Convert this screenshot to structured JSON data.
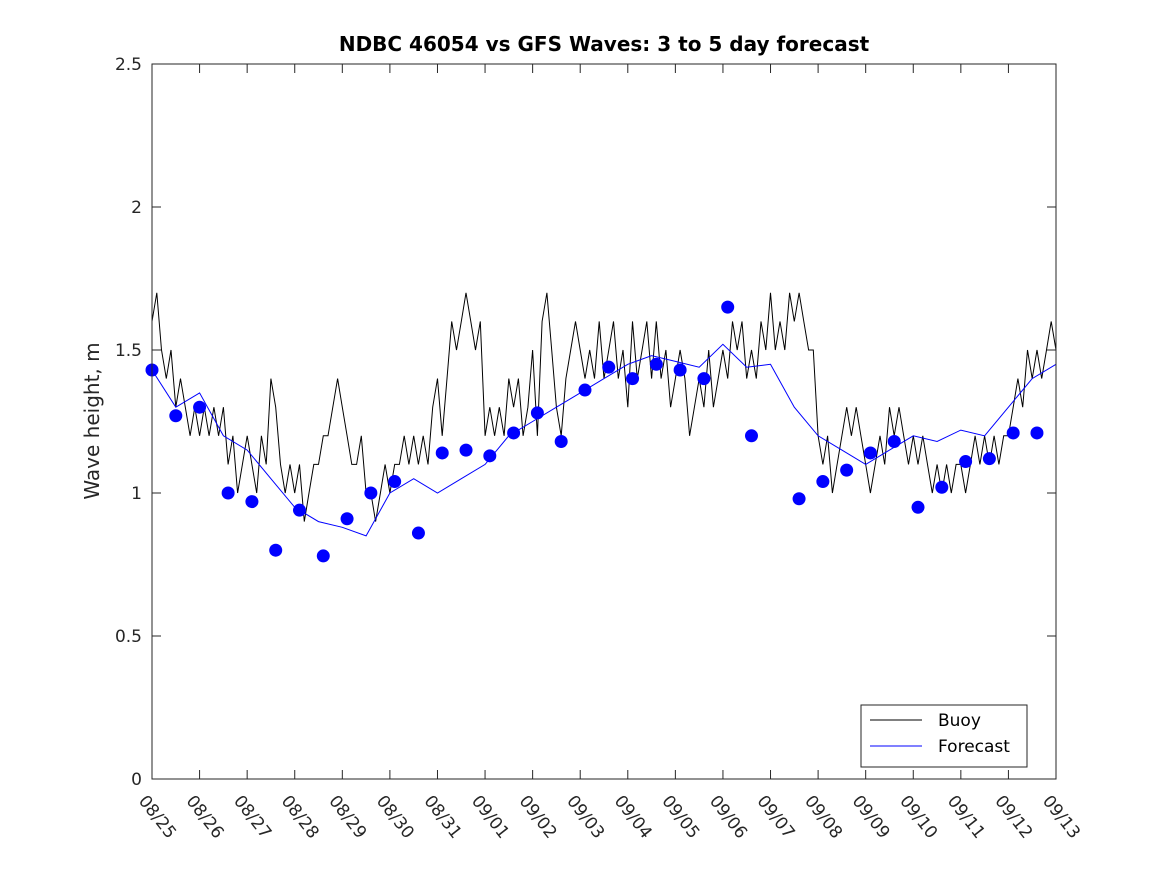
{
  "chart_data": {
    "type": "line",
    "title": "NDBC 46054 vs GFS Waves: 3 to 5 day forecast",
    "xlabel": "",
    "ylabel": "Wave height, m",
    "xlim": [
      0,
      19
    ],
    "ylim": [
      0,
      2.5
    ],
    "x_ticks": [
      "08/25",
      "08/26",
      "08/27",
      "08/28",
      "08/29",
      "08/30",
      "08/31",
      "09/01",
      "09/02",
      "09/03",
      "09/04",
      "09/05",
      "09/06",
      "09/07",
      "09/08",
      "09/09",
      "09/10",
      "09/11",
      "09/12",
      "09/13"
    ],
    "y_ticks": [
      "0",
      "0.5",
      "1",
      "1.5",
      "2",
      "2.5"
    ],
    "legend": {
      "position": "bottom-right",
      "entries": [
        {
          "label": "Buoy",
          "color": "#000000"
        },
        {
          "label": "Forecast",
          "color": "#0000ff"
        }
      ]
    },
    "series": [
      {
        "name": "Buoy",
        "color": "#000000",
        "points": [
          [
            0,
            1.6
          ],
          [
            0.1,
            1.7
          ],
          [
            0.2,
            1.5
          ],
          [
            0.3,
            1.4
          ],
          [
            0.4,
            1.5
          ],
          [
            0.5,
            1.3
          ],
          [
            0.6,
            1.4
          ],
          [
            0.7,
            1.3
          ],
          [
            0.8,
            1.2
          ],
          [
            0.9,
            1.3
          ],
          [
            1.0,
            1.2
          ],
          [
            1.1,
            1.3
          ],
          [
            1.2,
            1.2
          ],
          [
            1.3,
            1.3
          ],
          [
            1.4,
            1.2
          ],
          [
            1.5,
            1.3
          ],
          [
            1.6,
            1.1
          ],
          [
            1.7,
            1.2
          ],
          [
            1.8,
            1.0
          ],
          [
            1.9,
            1.1
          ],
          [
            2.0,
            1.2
          ],
          [
            2.1,
            1.1
          ],
          [
            2.2,
            1.0
          ],
          [
            2.3,
            1.2
          ],
          [
            2.4,
            1.1
          ],
          [
            2.5,
            1.4
          ],
          [
            2.6,
            1.3
          ],
          [
            2.7,
            1.1
          ],
          [
            2.8,
            1.0
          ],
          [
            2.9,
            1.1
          ],
          [
            3.0,
            1.0
          ],
          [
            3.1,
            1.1
          ],
          [
            3.2,
            0.9
          ],
          [
            3.3,
            1.0
          ],
          [
            3.4,
            1.1
          ],
          [
            3.5,
            1.1
          ],
          [
            3.6,
            1.2
          ],
          [
            3.7,
            1.2
          ],
          [
            3.8,
            1.3
          ],
          [
            3.9,
            1.4
          ],
          [
            4.0,
            1.3
          ],
          [
            4.1,
            1.2
          ],
          [
            4.2,
            1.1
          ],
          [
            4.3,
            1.1
          ],
          [
            4.4,
            1.2
          ],
          [
            4.5,
            1.0
          ],
          [
            4.6,
            1.0
          ],
          [
            4.7,
            0.9
          ],
          [
            4.8,
            1.0
          ],
          [
            4.9,
            1.1
          ],
          [
            5.0,
            1.0
          ],
          [
            5.1,
            1.1
          ],
          [
            5.2,
            1.1
          ],
          [
            5.3,
            1.2
          ],
          [
            5.4,
            1.1
          ],
          [
            5.5,
            1.2
          ],
          [
            5.6,
            1.1
          ],
          [
            5.7,
            1.2
          ],
          [
            5.8,
            1.1
          ],
          [
            5.9,
            1.3
          ],
          [
            6.0,
            1.4
          ],
          [
            6.1,
            1.2
          ],
          [
            6.2,
            1.4
          ],
          [
            6.3,
            1.6
          ],
          [
            6.4,
            1.5
          ],
          [
            6.5,
            1.6
          ],
          [
            6.6,
            1.7
          ],
          [
            6.7,
            1.6
          ],
          [
            6.8,
            1.5
          ],
          [
            6.9,
            1.6
          ],
          [
            7.0,
            1.2
          ],
          [
            7.1,
            1.3
          ],
          [
            7.2,
            1.2
          ],
          [
            7.3,
            1.3
          ],
          [
            7.4,
            1.2
          ],
          [
            7.5,
            1.4
          ],
          [
            7.6,
            1.3
          ],
          [
            7.7,
            1.4
          ],
          [
            7.8,
            1.2
          ],
          [
            7.9,
            1.3
          ],
          [
            8.0,
            1.5
          ],
          [
            8.1,
            1.2
          ],
          [
            8.2,
            1.6
          ],
          [
            8.3,
            1.7
          ],
          [
            8.4,
            1.5
          ],
          [
            8.5,
            1.3
          ],
          [
            8.6,
            1.2
          ],
          [
            8.7,
            1.4
          ],
          [
            8.8,
            1.5
          ],
          [
            8.9,
            1.6
          ],
          [
            9.0,
            1.5
          ],
          [
            9.1,
            1.4
          ],
          [
            9.2,
            1.5
          ],
          [
            9.3,
            1.4
          ],
          [
            9.4,
            1.6
          ],
          [
            9.5,
            1.4
          ],
          [
            9.6,
            1.5
          ],
          [
            9.7,
            1.6
          ],
          [
            9.8,
            1.4
          ],
          [
            9.9,
            1.5
          ],
          [
            10.0,
            1.3
          ],
          [
            10.1,
            1.6
          ],
          [
            10.2,
            1.4
          ],
          [
            10.3,
            1.5
          ],
          [
            10.4,
            1.6
          ],
          [
            10.5,
            1.4
          ],
          [
            10.6,
            1.6
          ],
          [
            10.7,
            1.4
          ],
          [
            10.8,
            1.5
          ],
          [
            10.9,
            1.3
          ],
          [
            11.0,
            1.4
          ],
          [
            11.1,
            1.5
          ],
          [
            11.2,
            1.4
          ],
          [
            11.3,
            1.2
          ],
          [
            11.4,
            1.3
          ],
          [
            11.5,
            1.4
          ],
          [
            11.6,
            1.3
          ],
          [
            11.7,
            1.5
          ],
          [
            11.8,
            1.3
          ],
          [
            11.9,
            1.4
          ],
          [
            12.0,
            1.5
          ],
          [
            12.1,
            1.4
          ],
          [
            12.2,
            1.6
          ],
          [
            12.3,
            1.5
          ],
          [
            12.4,
            1.6
          ],
          [
            12.5,
            1.4
          ],
          [
            12.6,
            1.5
          ],
          [
            12.7,
            1.4
          ],
          [
            12.8,
            1.6
          ],
          [
            12.9,
            1.5
          ],
          [
            13.0,
            1.7
          ],
          [
            13.1,
            1.5
          ],
          [
            13.2,
            1.6
          ],
          [
            13.3,
            1.5
          ],
          [
            13.4,
            1.7
          ],
          [
            13.5,
            1.6
          ],
          [
            13.6,
            1.7
          ],
          [
            13.7,
            1.6
          ],
          [
            13.8,
            1.5
          ],
          [
            13.9,
            1.5
          ],
          [
            14.0,
            1.2
          ],
          [
            14.1,
            1.1
          ],
          [
            14.2,
            1.2
          ],
          [
            14.3,
            1.0
          ],
          [
            14.4,
            1.1
          ],
          [
            14.5,
            1.2
          ],
          [
            14.6,
            1.3
          ],
          [
            14.7,
            1.2
          ],
          [
            14.8,
            1.3
          ],
          [
            14.9,
            1.2
          ],
          [
            15.0,
            1.1
          ],
          [
            15.1,
            1.0
          ],
          [
            15.2,
            1.1
          ],
          [
            15.3,
            1.2
          ],
          [
            15.4,
            1.1
          ],
          [
            15.5,
            1.3
          ],
          [
            15.6,
            1.2
          ],
          [
            15.7,
            1.3
          ],
          [
            15.8,
            1.2
          ],
          [
            15.9,
            1.1
          ],
          [
            16.0,
            1.2
          ],
          [
            16.1,
            1.1
          ],
          [
            16.2,
            1.2
          ],
          [
            16.3,
            1.1
          ],
          [
            16.4,
            1.0
          ],
          [
            16.5,
            1.1
          ],
          [
            16.6,
            1.0
          ],
          [
            16.7,
            1.1
          ],
          [
            16.8,
            1.0
          ],
          [
            16.9,
            1.1
          ],
          [
            17.0,
            1.1
          ],
          [
            17.1,
            1.0
          ],
          [
            17.2,
            1.1
          ],
          [
            17.3,
            1.2
          ],
          [
            17.4,
            1.1
          ],
          [
            17.5,
            1.2
          ],
          [
            17.6,
            1.1
          ],
          [
            17.7,
            1.2
          ],
          [
            17.8,
            1.1
          ],
          [
            17.9,
            1.2
          ],
          [
            18.0,
            1.2
          ],
          [
            18.1,
            1.3
          ],
          [
            18.2,
            1.4
          ],
          [
            18.3,
            1.3
          ],
          [
            18.4,
            1.5
          ],
          [
            18.5,
            1.4
          ],
          [
            18.6,
            1.5
          ],
          [
            18.7,
            1.4
          ],
          [
            18.8,
            1.5
          ],
          [
            18.9,
            1.6
          ],
          [
            19.0,
            1.5
          ]
        ]
      },
      {
        "name": "Forecast",
        "color": "#0000ff",
        "points": [
          [
            0,
            1.43
          ],
          [
            0.5,
            1.3
          ],
          [
            1.0,
            1.35
          ],
          [
            1.5,
            1.2
          ],
          [
            2.0,
            1.15
          ],
          [
            2.5,
            1.05
          ],
          [
            3.0,
            0.95
          ],
          [
            3.5,
            0.9
          ],
          [
            4.0,
            0.88
          ],
          [
            4.5,
            0.85
          ],
          [
            5.0,
            1.0
          ],
          [
            5.5,
            1.05
          ],
          [
            6.0,
            1.0
          ],
          [
            6.5,
            1.05
          ],
          [
            7.0,
            1.1
          ],
          [
            7.5,
            1.2
          ],
          [
            8.0,
            1.25
          ],
          [
            8.5,
            1.3
          ],
          [
            9.0,
            1.35
          ],
          [
            9.5,
            1.4
          ],
          [
            10.0,
            1.45
          ],
          [
            10.5,
            1.48
          ],
          [
            11.0,
            1.46
          ],
          [
            11.5,
            1.44
          ],
          [
            12.0,
            1.52
          ],
          [
            12.5,
            1.44
          ],
          [
            13.0,
            1.45
          ],
          [
            13.5,
            1.3
          ],
          [
            14.0,
            1.2
          ],
          [
            14.5,
            1.15
          ],
          [
            15.0,
            1.1
          ],
          [
            15.5,
            1.15
          ],
          [
            16.0,
            1.2
          ],
          [
            16.5,
            1.18
          ],
          [
            17.0,
            1.22
          ],
          [
            17.5,
            1.2
          ],
          [
            18.0,
            1.3
          ],
          [
            18.5,
            1.4
          ],
          [
            19.0,
            1.45
          ]
        ]
      }
    ],
    "markers": {
      "name": "Forecast",
      "color": "#0000ff",
      "points": [
        [
          0.0,
          1.43
        ],
        [
          0.5,
          1.27
        ],
        [
          1.0,
          1.3
        ],
        [
          1.6,
          1.0
        ],
        [
          2.1,
          0.97
        ],
        [
          2.6,
          0.8
        ],
        [
          3.1,
          0.94
        ],
        [
          3.6,
          0.78
        ],
        [
          4.1,
          0.91
        ],
        [
          4.6,
          1.0
        ],
        [
          5.1,
          1.04
        ],
        [
          5.6,
          0.86
        ],
        [
          6.1,
          1.14
        ],
        [
          6.6,
          1.15
        ],
        [
          7.1,
          1.13
        ],
        [
          7.6,
          1.21
        ],
        [
          8.1,
          1.28
        ],
        [
          8.6,
          1.18
        ],
        [
          9.1,
          1.36
        ],
        [
          9.6,
          1.44
        ],
        [
          10.1,
          1.4
        ],
        [
          10.6,
          1.45
        ],
        [
          11.1,
          1.43
        ],
        [
          11.6,
          1.4
        ],
        [
          12.1,
          1.65
        ],
        [
          12.6,
          1.2
        ],
        [
          13.6,
          0.98
        ],
        [
          14.1,
          1.04
        ],
        [
          14.6,
          1.08
        ],
        [
          15.1,
          1.14
        ],
        [
          15.6,
          1.18
        ],
        [
          16.1,
          0.95
        ],
        [
          16.6,
          1.02
        ],
        [
          17.1,
          1.11
        ],
        [
          17.6,
          1.12
        ],
        [
          18.1,
          1.21
        ],
        [
          18.6,
          1.21
        ]
      ]
    }
  }
}
